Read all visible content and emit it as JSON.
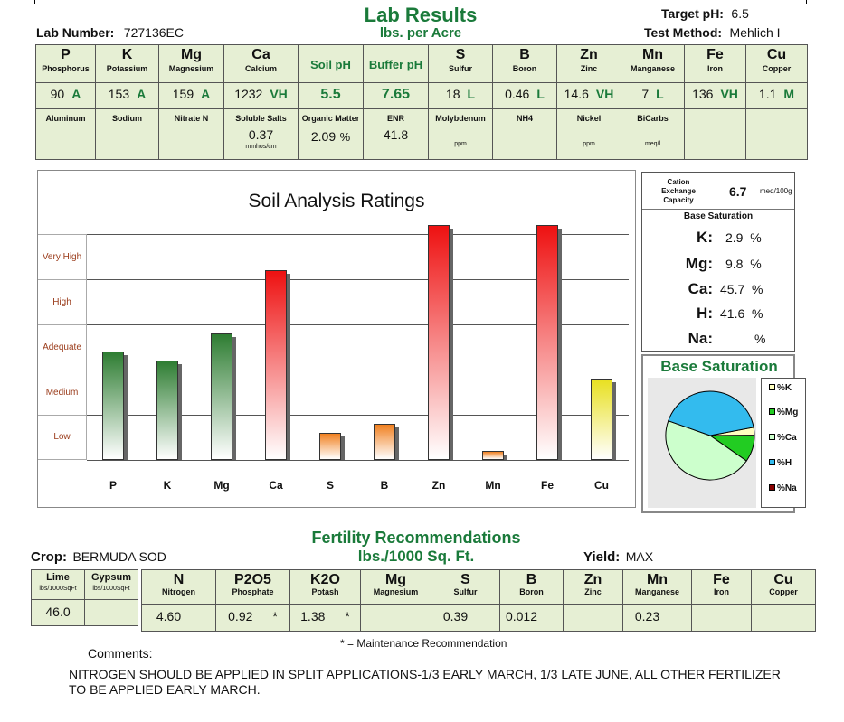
{
  "header": {
    "title": "Lab Results",
    "subtitle": "lbs. per Acre",
    "lab_number_label": "Lab Number:",
    "lab_number": "727136EC",
    "target_ph_label": "Target pH:",
    "target_ph": "6.5",
    "test_method_label": "Test Method:",
    "test_method": "Mehlich I"
  },
  "nutrients": [
    {
      "sym": "P",
      "name": "Phosphorus",
      "value": "90",
      "rating": "A"
    },
    {
      "sym": "K",
      "name": "Potassium",
      "value": "153",
      "rating": "A"
    },
    {
      "sym": "Mg",
      "name": "Magnesium",
      "value": "159",
      "rating": "A"
    },
    {
      "sym": "Ca",
      "name": "Calcium",
      "value": "1232",
      "rating": "VH"
    },
    {
      "sym": "Soil pH",
      "name": "",
      "value": "5.5",
      "rating": ""
    },
    {
      "sym": "Buffer pH",
      "name": "",
      "value": "7.65",
      "rating": ""
    },
    {
      "sym": "S",
      "name": "Sulfur",
      "value": "18",
      "rating": "L"
    },
    {
      "sym": "B",
      "name": "Boron",
      "value": "0.46",
      "rating": "L"
    },
    {
      "sym": "Zn",
      "name": "Zinc",
      "value": "14.6",
      "rating": "VH"
    },
    {
      "sym": "Mn",
      "name": "Manganese",
      "value": "7",
      "rating": "L"
    },
    {
      "sym": "Fe",
      "name": "Iron",
      "value": "136",
      "rating": "VH"
    },
    {
      "sym": "Cu",
      "name": "Copper",
      "value": "1.1",
      "rating": "M"
    }
  ],
  "extras": [
    {
      "name": "Aluminum",
      "value": "",
      "unit": ""
    },
    {
      "name": "Sodium",
      "value": "",
      "unit": ""
    },
    {
      "name": "Nitrate N",
      "value": "",
      "unit": ""
    },
    {
      "name": "Soluble Salts",
      "value": "0.37",
      "unit": "mmhos/cm"
    },
    {
      "name": "Organic Matter",
      "value": "2.09",
      "unit": "%"
    },
    {
      "name": "ENR",
      "value": "41.8",
      "unit": ""
    },
    {
      "name": "Molybdenum",
      "value": "",
      "unit": "ppm"
    },
    {
      "name": "NH4",
      "value": "",
      "unit": ""
    },
    {
      "name": "Nickel",
      "value": "",
      "unit": "ppm"
    },
    {
      "name": "BiCarbs",
      "value": "",
      "unit": "meq/l"
    },
    {
      "name": "",
      "value": "",
      "unit": ""
    },
    {
      "name": "",
      "value": "",
      "unit": ""
    }
  ],
  "chart_data": {
    "type": "bar",
    "title": "Soil Analysis Ratings",
    "categories": [
      "P",
      "K",
      "Mg",
      "Ca",
      "S",
      "B",
      "Zn",
      "Mn",
      "Fe",
      "Cu"
    ],
    "values": [
      2.4,
      2.2,
      2.8,
      4.2,
      0.6,
      0.8,
      5.2,
      0.2,
      5.2,
      1.8
    ],
    "rating_levels": [
      "Low",
      "Medium",
      "Adequate",
      "High",
      "Very High"
    ],
    "ylim": [
      0,
      5.2
    ],
    "colors": [
      "#2e7d32",
      "#2e7d32",
      "#2e7d32",
      "#ee1111",
      "#f08020",
      "#f08020",
      "#ee1111",
      "#f08020",
      "#ee1111",
      "#e8e020"
    ]
  },
  "cation": {
    "cec_label": "Cation Exchange Capacity",
    "cec_value": "6.7",
    "cec_unit": "meq/100g",
    "base_sat_label": "Base Saturation",
    "items": [
      {
        "label": "K:",
        "value": "2.9",
        "unit": "%"
      },
      {
        "label": "Mg:",
        "value": "9.8",
        "unit": "%"
      },
      {
        "label": "Ca:",
        "value": "45.7",
        "unit": "%"
      },
      {
        "label": "H:",
        "value": "41.6",
        "unit": "%"
      },
      {
        "label": "Na:",
        "value": "",
        "unit": "%"
      }
    ]
  },
  "base_saturation_pie": {
    "title": "Base Saturation",
    "slices": [
      {
        "name": "%K",
        "value": 2.9,
        "color": "#ffffc0"
      },
      {
        "name": "%Mg",
        "value": 9.8,
        "color": "#22cc22"
      },
      {
        "name": "%Ca",
        "value": 45.7,
        "color": "#ccffcc"
      },
      {
        "name": "%H",
        "value": 41.6,
        "color": "#33bbee"
      },
      {
        "name": "%Na",
        "value": 0,
        "color": "#880000"
      }
    ]
  },
  "recommendations": {
    "title": "Fertility Recommendations",
    "subtitle": "lbs./1000 Sq. Ft.",
    "crop_label": "Crop:",
    "crop": "BERMUDA SOD",
    "yield_label": "Yield:",
    "yield": "MAX",
    "lime": {
      "sym": "Lime",
      "unit": "lbs/1000SqFt",
      "value": "46.0"
    },
    "gypsum": {
      "sym": "Gypsum",
      "unit": "lbs/1000SqFt",
      "value": ""
    },
    "items": [
      {
        "sym": "N",
        "name": "Nitrogen",
        "value": "4.60",
        "mark": ""
      },
      {
        "sym": "P2O5",
        "name": "Phosphate",
        "value": "0.92",
        "mark": "*"
      },
      {
        "sym": "K2O",
        "name": "Potash",
        "value": "1.38",
        "mark": "*"
      },
      {
        "sym": "Mg",
        "name": "Magnesium",
        "value": "",
        "mark": ""
      },
      {
        "sym": "S",
        "name": "Sulfur",
        "value": "0.39",
        "mark": ""
      },
      {
        "sym": "B",
        "name": "Boron",
        "value": "0.012",
        "mark": ""
      },
      {
        "sym": "Zn",
        "name": "Zinc",
        "value": "",
        "mark": ""
      },
      {
        "sym": "Mn",
        "name": "Manganese",
        "value": "0.23",
        "mark": ""
      },
      {
        "sym": "Fe",
        "name": "Iron",
        "value": "",
        "mark": ""
      },
      {
        "sym": "Cu",
        "name": "Copper",
        "value": "",
        "mark": ""
      }
    ],
    "maintenance_note": "* = Maintenance Recommendation"
  },
  "comments": {
    "label": "Comments:",
    "text": "NITROGEN SHOULD BE APPLIED IN SPLIT APPLICATIONS-1/3 EARLY MARCH, 1/3 LATE JUNE, ALL OTHER FERTILIZER TO BE APPLIED EARLY MARCH."
  }
}
